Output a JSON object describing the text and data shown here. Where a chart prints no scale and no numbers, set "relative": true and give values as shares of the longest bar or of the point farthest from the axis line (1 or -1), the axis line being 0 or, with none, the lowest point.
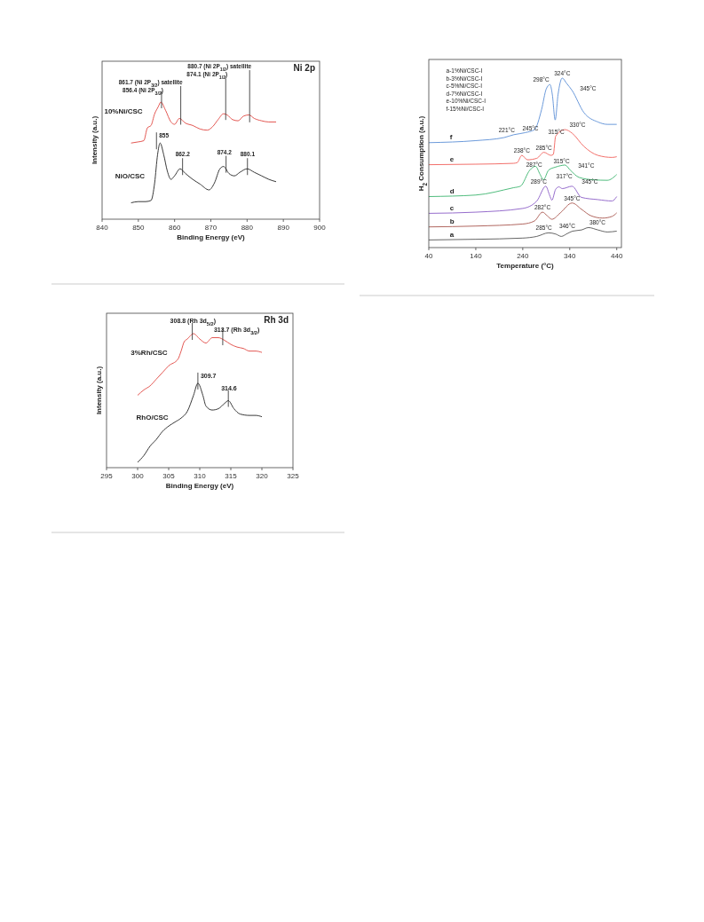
{
  "chart_data": [
    {
      "type": "line",
      "title": "Ni 2p",
      "xlabel": "Binding  Energy (eV)",
      "ylabel": "Intensity (a.u.)",
      "relative": true,
      "xlim": [
        840,
        900
      ],
      "xticks": [
        840,
        850,
        860,
        870,
        880,
        890,
        900
      ],
      "grid": false,
      "legend": false,
      "series": [
        {
          "name": "10%Ni/CSC",
          "color": "#e0453f",
          "x": [
            848,
            850,
            851.5,
            852.5,
            853.5,
            854.5,
            855.5,
            856.2,
            857.5,
            859,
            860,
            861.3,
            863,
            865,
            867,
            869,
            870.5,
            872,
            873.5,
            874.5,
            876,
            877.5,
            879,
            880.5,
            882,
            884,
            886,
            888
          ],
          "values": [
            0.65,
            0.66,
            0.67,
            0.78,
            0.8,
            0.9,
            0.96,
            1.0,
            0.93,
            0.83,
            0.81,
            0.86,
            0.82,
            0.8,
            0.77,
            0.76,
            0.79,
            0.85,
            0.9,
            0.89,
            0.85,
            0.84,
            0.88,
            0.89,
            0.86,
            0.84,
            0.83,
            0.83
          ]
        },
        {
          "name": "NiO/CSC",
          "color": "#222222",
          "x": [
            848,
            850,
            852,
            853.5,
            854.5,
            855.3,
            856,
            857,
            858,
            859,
            860,
            861.5,
            863,
            865,
            867,
            869.5,
            871,
            872.5,
            873.5,
            875,
            876.5,
            878,
            880,
            882,
            884,
            886,
            888
          ],
          "values": [
            0.14,
            0.15,
            0.15,
            0.16,
            0.31,
            0.55,
            0.65,
            0.55,
            0.41,
            0.34,
            0.37,
            0.43,
            0.39,
            0.34,
            0.3,
            0.25,
            0.31,
            0.43,
            0.45,
            0.39,
            0.37,
            0.4,
            0.43,
            0.4,
            0.37,
            0.34,
            0.32
          ]
        }
      ],
      "annotations": [
        {
          "text": "856.4 (Ni 2P$_{3/2}$)",
          "x": 856.4,
          "y": 1.0
        },
        {
          "text": "861.7 (Ni 2P$_{3/2}$) satellite",
          "x": 861.7,
          "y": 0.86
        },
        {
          "text": "874.1 (Ni 2P$_{1/2}$)",
          "x": 874.1,
          "y": 0.9
        },
        {
          "text": "880.7 (Ni 2P$_{1/2}$) satellite",
          "x": 880.7,
          "y": 0.88
        },
        {
          "text": "855",
          "x": 855,
          "y": 0.65
        },
        {
          "text": "862.2",
          "x": 862.2,
          "y": 0.43
        },
        {
          "text": "874.2",
          "x": 874.2,
          "y": 0.45
        },
        {
          "text": "880.1",
          "x": 880.1,
          "y": 0.43
        }
      ]
    },
    {
      "type": "line",
      "title": "Rh 3d",
      "xlabel": "Binding  Energy (eV)",
      "ylabel": "Intensity (a.u.)",
      "relative": true,
      "xlim": [
        295,
        325
      ],
      "xticks": [
        295,
        300,
        305,
        310,
        315,
        320,
        325
      ],
      "grid": false,
      "legend": false,
      "series": [
        {
          "name": "3%Rh/CSC",
          "color": "#e0453f",
          "x": [
            300,
            301,
            302,
            303,
            304,
            305,
            306.5,
            307,
            307.5,
            308,
            309,
            310,
            311,
            312,
            313,
            314,
            315,
            316,
            317,
            318,
            319,
            320
          ],
          "values": [
            0.54,
            0.58,
            0.61,
            0.66,
            0.71,
            0.76,
            0.81,
            0.87,
            0.94,
            0.96,
            1.0,
            0.96,
            0.93,
            0.97,
            0.97,
            0.95,
            0.92,
            0.9,
            0.89,
            0.87,
            0.87,
            0.86
          ]
        },
        {
          "name": "RhO/CSC",
          "color": "#222222",
          "x": [
            300,
            301,
            302,
            303,
            304,
            305,
            306,
            307,
            308,
            309,
            309.7,
            310.5,
            311,
            312,
            313,
            314,
            314.6,
            315.5,
            316.5,
            318,
            319,
            320
          ],
          "values": [
            0.04,
            0.09,
            0.16,
            0.21,
            0.27,
            0.31,
            0.34,
            0.37,
            0.42,
            0.54,
            0.63,
            0.54,
            0.46,
            0.43,
            0.44,
            0.48,
            0.5,
            0.44,
            0.4,
            0.39,
            0.39,
            0.38
          ]
        }
      ],
      "annotations": [
        {
          "text": "308.8 (Rh 3d$_{5/2}$)",
          "x": 308.8,
          "y": 1.0
        },
        {
          "text": "313.7 (Rh 3d$_{3/2}$)",
          "x": 313.7,
          "y": 0.96
        },
        {
          "text": "309.7",
          "x": 309.7,
          "y": 0.63
        },
        {
          "text": "314.6",
          "x": 314.6,
          "y": 0.5
        }
      ]
    },
    {
      "type": "line",
      "xlabel": "Temperature (°C)",
      "ylabel": "H$_{2}$ Consumption (a.u.)",
      "relative": true,
      "xlim": [
        40,
        450
      ],
      "xticks": [
        40,
        140,
        240,
        340,
        440
      ],
      "grid": false,
      "legend": false,
      "series": [
        {
          "name": "a",
          "color": "#555555",
          "x": [
            40,
            140,
            240,
            270,
            295,
            310,
            322,
            335,
            346,
            365,
            380,
            400,
            420,
            440
          ],
          "values": [
            0.045,
            0.049,
            0.056,
            0.066,
            0.087,
            0.08,
            0.066,
            0.083,
            0.097,
            0.104,
            0.118,
            0.104,
            0.092,
            0.097
          ]
        },
        {
          "name": "b",
          "color": "#a8564e",
          "x": [
            40,
            140,
            240,
            265,
            282,
            292,
            302,
            320,
            345,
            365,
            385,
            410,
            430,
            440
          ],
          "values": [
            0.122,
            0.127,
            0.139,
            0.157,
            0.209,
            0.188,
            0.167,
            0.205,
            0.263,
            0.226,
            0.188,
            0.174,
            0.184,
            0.205
          ]
        },
        {
          "name": "c",
          "color": "#8a5cc6",
          "x": [
            40,
            140,
            240,
            270,
            289,
            297,
            302,
            310,
            317,
            324,
            345,
            365,
            400,
            430,
            440
          ],
          "values": [
            0.202,
            0.209,
            0.231,
            0.275,
            0.362,
            0.31,
            0.28,
            0.344,
            0.358,
            0.348,
            0.362,
            0.296,
            0.283,
            0.275,
            0.301
          ]
        },
        {
          "name": "d",
          "color": "#3cb46e",
          "x": [
            40,
            140,
            220,
            235,
            255,
            267,
            277,
            284,
            295,
            310,
            320,
            330,
            341,
            360,
            390,
            420,
            440
          ],
          "values": [
            0.301,
            0.31,
            0.353,
            0.362,
            0.457,
            0.48,
            0.431,
            0.4,
            0.457,
            0.475,
            0.483,
            0.487,
            0.457,
            0.414,
            0.4,
            0.397,
            0.431
          ]
        },
        {
          "name": "e",
          "color": "#f0605a",
          "x": [
            40,
            140,
            220,
            228,
            238,
            250,
            270,
            285,
            300,
            305,
            310,
            330,
            345,
            370,
            400,
            430,
            440
          ],
          "values": [
            0.489,
            0.492,
            0.497,
            0.501,
            0.544,
            0.518,
            0.527,
            0.562,
            0.544,
            0.55,
            0.657,
            0.696,
            0.675,
            0.597,
            0.544,
            0.532,
            0.536
          ]
        },
        {
          "name": "f",
          "color": "#5b8fd6",
          "x": [
            40,
            140,
            200,
            221,
            245,
            265,
            280,
            290,
            298,
            303,
            309,
            315,
            324,
            333,
            345,
            370,
            400,
            420,
            440
          ],
          "values": [
            0.619,
            0.631,
            0.649,
            0.666,
            0.678,
            0.696,
            0.814,
            0.936,
            0.962,
            0.901,
            0.753,
            0.901,
            1.0,
            0.97,
            0.927,
            0.797,
            0.741,
            0.727,
            0.727
          ]
        }
      ],
      "annotations": [
        "a-1%Ni/CSC-I",
        "b-3%Ni/CSC-I",
        "c-5%Ni/CSC-I",
        "d-7%Ni/CSC-I",
        "e-10%Ni/CSC-I",
        "f-15%Ni/CSC-I",
        {
          "text": "285°C",
          "x": 285,
          "y": 0.087
        },
        {
          "text": "346°C",
          "x": 346,
          "y": 0.097
        },
        {
          "text": "380°C",
          "x": 380,
          "y": 0.118
        },
        {
          "text": "282°C",
          "x": 282,
          "y": 0.209
        },
        {
          "text": "345°C",
          "x": 345,
          "y": 0.263
        },
        {
          "text": "289°C",
          "x": 289,
          "y": 0.362
        },
        {
          "text": "317°C",
          "x": 317,
          "y": 0.358
        },
        {
          "text": "345°C",
          "x": 345,
          "y": 0.362
        },
        {
          "text": "287°C",
          "x": 287,
          "y": 0.46
        },
        {
          "text": "315°C",
          "x": 315,
          "y": 0.48
        },
        {
          "text": "341°C",
          "x": 341,
          "y": 0.457
        },
        {
          "text": "238°C",
          "x": 238,
          "y": 0.544
        },
        {
          "text": "285°C",
          "x": 285,
          "y": 0.562
        },
        {
          "text": "315°C",
          "x": 315,
          "y": 0.657
        },
        {
          "text": "330°C",
          "x": 330,
          "y": 0.696
        },
        {
          "text": "221°C",
          "x": 221,
          "y": 0.666
        },
        {
          "text": "245°C",
          "x": 245,
          "y": 0.678
        },
        {
          "text": "298°C",
          "x": 298,
          "y": 0.962
        },
        {
          "text": "324°C",
          "x": 324,
          "y": 1.0
        },
        {
          "text": "345°C",
          "x": 345,
          "y": 0.927
        }
      ]
    }
  ]
}
